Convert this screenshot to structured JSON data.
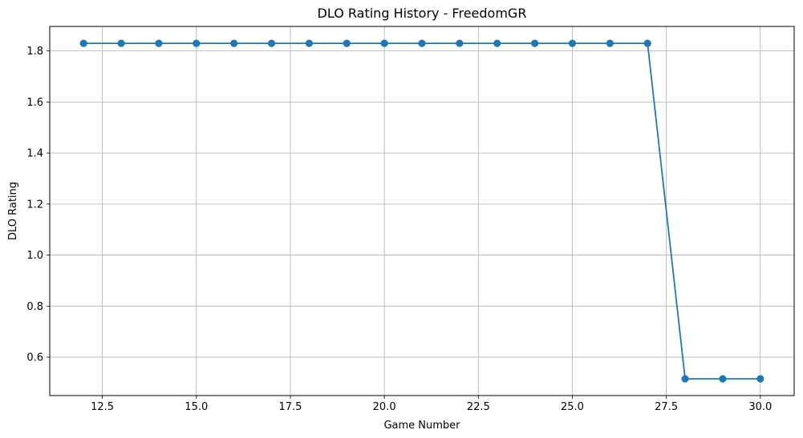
{
  "chart_data": {
    "type": "line",
    "title": "DLO Rating History - FreedomGR",
    "xlabel": "Game Number",
    "ylabel": "DLO Rating",
    "xlim": [
      11.1,
      30.9
    ],
    "ylim": [
      0.4495,
      1.8962
    ],
    "xticks": [
      12.5,
      15.0,
      17.5,
      20.0,
      22.5,
      25.0,
      27.5,
      30.0
    ],
    "xtick_labels": [
      "12.5",
      "15.0",
      "17.5",
      "20.0",
      "22.5",
      "25.0",
      "27.5",
      "30.0"
    ],
    "yticks": [
      0.6,
      0.8,
      1.0,
      1.2,
      1.4,
      1.6,
      1.8
    ],
    "ytick_labels": [
      "0.6",
      "0.8",
      "1.0",
      "1.2",
      "1.4",
      "1.6",
      "1.8"
    ],
    "grid": true,
    "marker": "circle",
    "color": "#1f77b4",
    "series": [
      {
        "x": [
          12,
          13,
          14,
          15,
          16,
          17,
          18,
          19,
          20,
          21,
          22,
          23,
          24,
          25,
          26,
          27,
          28,
          29,
          30
        ],
        "y": [
          1.83,
          1.83,
          1.83,
          1.83,
          1.83,
          1.83,
          1.83,
          1.83,
          1.83,
          1.83,
          1.83,
          1.83,
          1.83,
          1.83,
          1.83,
          1.83,
          0.515,
          0.515,
          0.515
        ]
      }
    ]
  }
}
